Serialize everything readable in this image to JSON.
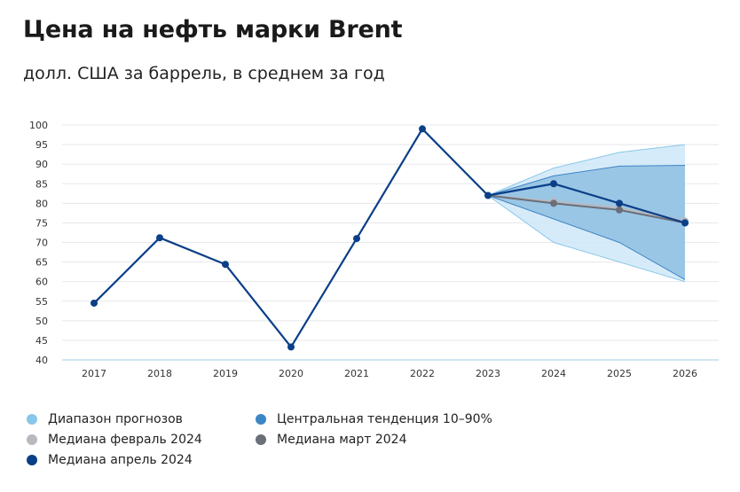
{
  "title": "Цена на нефть марки Brent",
  "subtitle": "долл. США за баррель, в среднем за год",
  "legend": [
    {
      "label": "Диапазон прогнозов",
      "color": "#88c6ea"
    },
    {
      "label": "Центральная тенденция 10–90%",
      "color": "#3d86c6"
    },
    {
      "label": "Медиана февраль 2024",
      "color": "#b7b9bf"
    },
    {
      "label": "Медиана март 2024",
      "color": "#6b6f78"
    },
    {
      "label": "Медиана апрель 2024",
      "color": "#0b3f87"
    }
  ],
  "chart_data": {
    "type": "line",
    "x": [
      "2017",
      "2018",
      "2019",
      "2020",
      "2021",
      "2022",
      "2023",
      "2024",
      "2025",
      "2026"
    ],
    "ylim": [
      40,
      100
    ],
    "yticks": [
      "40",
      "45",
      "50",
      "55",
      "60",
      "65",
      "70",
      "75",
      "80",
      "85",
      "90",
      "95",
      "100"
    ],
    "grid": true,
    "series": [
      {
        "name": "Медиана апрель 2024",
        "color": "#0b3f87",
        "x": [
          "2017",
          "2018",
          "2019",
          "2020",
          "2021",
          "2022",
          "2023",
          "2024",
          "2025",
          "2026"
        ],
        "values": [
          54.5,
          71.2,
          64.4,
          43.3,
          71.0,
          99.0,
          82.0,
          85.0,
          80.0,
          75.0
        ]
      },
      {
        "name": "Медиана март 2024",
        "color": "#6b6f78",
        "x": [
          "2023",
          "2024",
          "2025",
          "2026"
        ],
        "values": [
          82.0,
          80.0,
          78.3,
          75.0
        ]
      },
      {
        "name": "Медиана февраль 2024",
        "color": "#b7b9bf",
        "x": [
          "2023",
          "2024",
          "2025",
          "2026"
        ],
        "values": [
          82.0,
          80.5,
          78.8,
          75.5
        ]
      }
    ],
    "bands": [
      {
        "name": "Диапазон прогнозов",
        "color": "#cfe8f8",
        "edge": "#88c6ea",
        "x": [
          "2023",
          "2024",
          "2025",
          "2026"
        ],
        "lower": [
          82.0,
          70.0,
          65.0,
          60.0
        ],
        "upper": [
          82.0,
          89.0,
          93.0,
          95.0
        ]
      },
      {
        "name": "Центральная тенденция 10–90%",
        "color": "#8fbfe2",
        "edge": "#3d86c6",
        "x": [
          "2023",
          "2024",
          "2025",
          "2026"
        ],
        "lower": [
          82.0,
          76.0,
          70.0,
          60.5
        ],
        "upper": [
          82.0,
          87.0,
          89.5,
          89.7
        ]
      }
    ]
  }
}
